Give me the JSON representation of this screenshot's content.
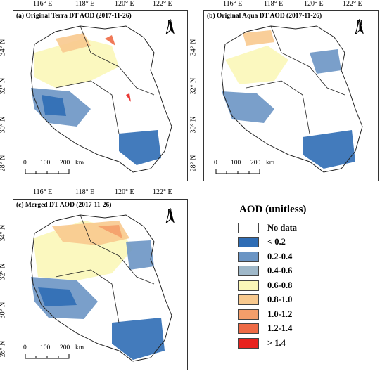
{
  "panels": [
    {
      "title": "(a) Original Terra DT AOD (2017-11-26)",
      "scale_labels": [
        "0",
        "100",
        "200",
        "km"
      ]
    },
    {
      "title": "(b) Original Aqua DT AOD (2017-11-26)",
      "scale_labels": [
        "0",
        "100",
        "200",
        "km"
      ]
    },
    {
      "title": "(c) Merged DT AOD (2017-11-26)",
      "scale_labels": [
        "0",
        "100",
        "200",
        "km"
      ]
    }
  ],
  "lon_ticks": [
    "116° E",
    "118° E",
    "120° E",
    "122° E"
  ],
  "lat_ticks": [
    "34° N",
    "32° N",
    "30° N",
    "28° N"
  ],
  "north_label": "N",
  "legend": {
    "title": "AOD (unitless)",
    "items": [
      {
        "label": "No data",
        "color": "#ffffff"
      },
      {
        "label": "< 0.2",
        "color": "#2f6db5"
      },
      {
        "label": "0.2-0.4",
        "color": "#6b95c4"
      },
      {
        "label": "0.4-0.6",
        "color": "#9fb8c9"
      },
      {
        "label": "0.6-0.8",
        "color": "#fbf7b8"
      },
      {
        "label": "0.8-1.0",
        "color": "#f8c98e"
      },
      {
        "label": "1.0-1.2",
        "color": "#f49e6a"
      },
      {
        "label": "1.2-1.4",
        "color": "#ee6a45"
      },
      {
        "label": "> 1.4",
        "color": "#e8221e"
      }
    ]
  }
}
